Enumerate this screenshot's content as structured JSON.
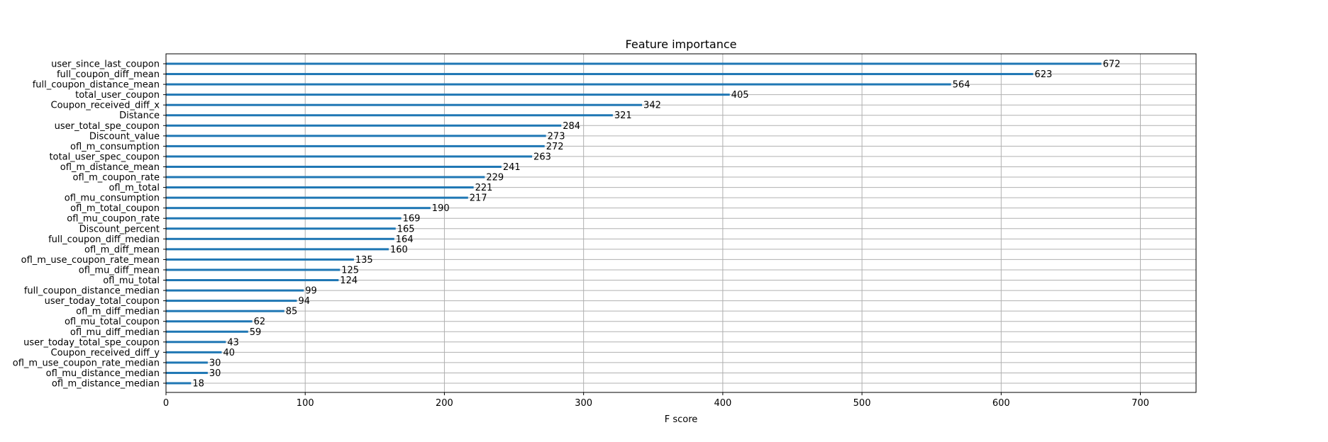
{
  "chart_data": {
    "type": "bar",
    "orientation": "horizontal",
    "title": "Feature importance",
    "xlabel": "F score",
    "ylabel": "",
    "xlim": [
      0,
      740
    ],
    "xticks": [
      0,
      100,
      200,
      300,
      400,
      500,
      600,
      700
    ],
    "grid": true,
    "bar_color": "#1f77b4",
    "categories": [
      "user_since_last_coupon",
      "full_coupon_diff_mean",
      "full_coupon_distance_mean",
      "total_user_coupon",
      "Coupon_received_diff_x",
      "Distance",
      "user_total_spe_coupon",
      "Discount_value",
      "ofl_m_consumption",
      "total_user_spec_coupon",
      "ofl_m_distance_mean",
      "ofl_m_coupon_rate",
      "ofl_m_total",
      "ofl_mu_consumption",
      "ofl_m_total_coupon",
      "ofl_mu_coupon_rate",
      "Discount_percent",
      "full_coupon_diff_median",
      "ofl_m_diff_mean",
      "ofl_m_use_coupon_rate_mean",
      "ofl_mu_diff_mean",
      "ofl_mu_total",
      "full_coupon_distance_median",
      "user_today_total_coupon",
      "ofl_m_diff_median",
      "ofl_mu_total_coupon",
      "ofl_mu_diff_median",
      "user_today_total_spe_coupon",
      "Coupon_received_diff_y",
      "ofl_m_use_coupon_rate_median",
      "ofl_mu_distance_median",
      "ofl_m_distance_median"
    ],
    "values": [
      672,
      623,
      564,
      405,
      342,
      321,
      284,
      273,
      272,
      263,
      241,
      229,
      221,
      217,
      190,
      169,
      165,
      164,
      160,
      135,
      125,
      124,
      99,
      94,
      85,
      62,
      59,
      43,
      40,
      30,
      30,
      18
    ]
  }
}
